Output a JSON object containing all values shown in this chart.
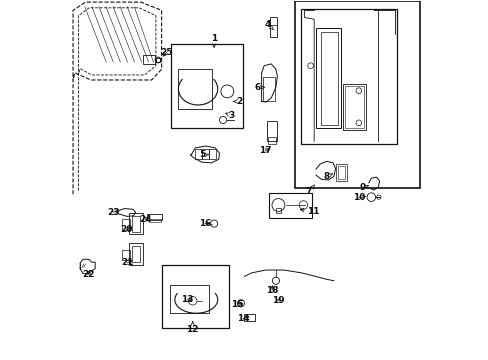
{
  "bg_color": "#ffffff",
  "line_color": "#111111",
  "figsize": [
    4.89,
    3.6
  ],
  "dpi": 100,
  "labels": [
    [
      1,
      0.415,
      0.895,
      0.415,
      0.865
    ],
    [
      2,
      0.485,
      0.72,
      0.468,
      0.72
    ],
    [
      3,
      0.465,
      0.68,
      0.445,
      0.688
    ],
    [
      4,
      0.565,
      0.935,
      0.582,
      0.92
    ],
    [
      5,
      0.382,
      0.57,
      0.405,
      0.572
    ],
    [
      6,
      0.538,
      0.758,
      0.558,
      0.76
    ],
    [
      7,
      0.68,
      0.468,
      0.7,
      0.49
    ],
    [
      8,
      0.73,
      0.51,
      0.748,
      0.518
    ],
    [
      9,
      0.83,
      0.478,
      0.852,
      0.486
    ],
    [
      10,
      0.82,
      0.45,
      0.845,
      0.455
    ],
    [
      11,
      0.692,
      0.412,
      0.65,
      0.418
    ],
    [
      12,
      0.355,
      0.082,
      0.355,
      0.105
    ],
    [
      13,
      0.34,
      0.165,
      0.358,
      0.158
    ],
    [
      14,
      0.498,
      0.112,
      0.518,
      0.12
    ],
    [
      15,
      0.48,
      0.152,
      0.5,
      0.155
    ],
    [
      16,
      0.39,
      0.378,
      0.408,
      0.378
    ],
    [
      17,
      0.558,
      0.582,
      0.575,
      0.59
    ],
    [
      18,
      0.578,
      0.192,
      0.578,
      0.21
    ],
    [
      19,
      0.596,
      0.162,
      0.602,
      0.175
    ],
    [
      20,
      0.17,
      0.362,
      0.188,
      0.37
    ],
    [
      21,
      0.172,
      0.268,
      0.19,
      0.278
    ],
    [
      22,
      0.062,
      0.235,
      0.068,
      0.252
    ],
    [
      23,
      0.132,
      0.41,
      0.155,
      0.415
    ],
    [
      24,
      0.222,
      0.39,
      0.238,
      0.395
    ],
    [
      25,
      0.282,
      0.858,
      0.268,
      0.842
    ]
  ]
}
